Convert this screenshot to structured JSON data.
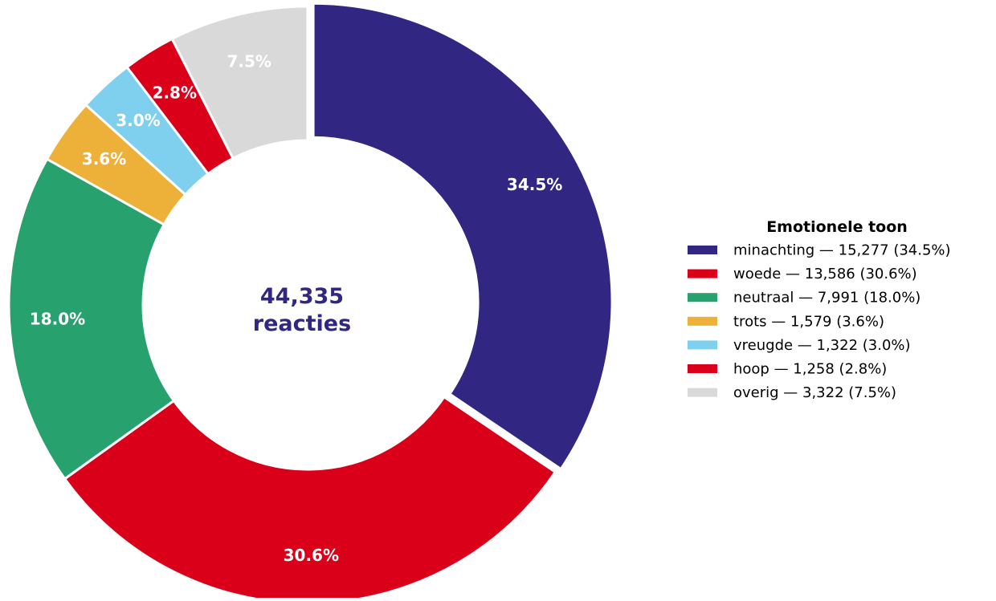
{
  "chart_data": {
    "type": "pie",
    "style": "donut",
    "center_label": {
      "line1": "44,335",
      "line2": "reacties"
    },
    "legend_title": "Emotionele toon",
    "legend_placement": "right",
    "slices": [
      {
        "label": "minachting",
        "value": 15277,
        "pct_text": "34.5%",
        "legend_text": "minachting  —  15,277 (34.5%)",
        "color": "#312783",
        "exploded": true
      },
      {
        "label": "woede",
        "value": 13586,
        "pct_text": "30.6%",
        "legend_text": "woede  —  13,586 (30.6%)",
        "color": "#DA0019",
        "exploded": false
      },
      {
        "label": "neutraal",
        "value": 7991,
        "pct_text": "18.0%",
        "legend_text": "neutraal  —  7,991 (18.0%)",
        "color": "#27A26E",
        "exploded": false
      },
      {
        "label": "trots",
        "value": 1579,
        "pct_text": "3.6%",
        "legend_text": "trots  —  1,579 (3.6%)",
        "color": "#EDB038",
        "exploded": false
      },
      {
        "label": "vreugde",
        "value": 1322,
        "pct_text": "3.0%",
        "legend_text": "vreugde  —  1,322 (3.0%)",
        "color": "#7FD0EF",
        "exploded": false
      },
      {
        "label": "hoop",
        "value": 1258,
        "pct_text": "2.8%",
        "legend_text": "hoop  —  1,258 (2.8%)",
        "color": "#DA0019",
        "exploded": false
      },
      {
        "label": "overig",
        "value": 3322,
        "pct_text": "7.5%",
        "legend_text": "overig  —  3,322 (7.5%)",
        "color": "#D9D9D9",
        "exploded": false
      }
    ],
    "start_angle_deg": 90,
    "direction": "clockwise",
    "center_text_color": "#312783"
  }
}
